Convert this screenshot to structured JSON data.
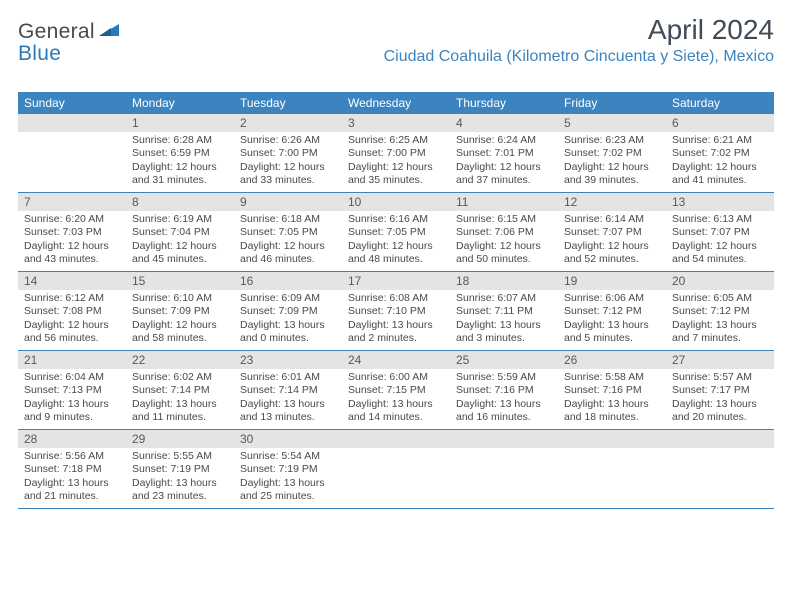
{
  "logo": {
    "textDark": "General",
    "textBlue": "Blue"
  },
  "title": "April 2024",
  "location": "Ciudad Coahuila (Kilometro Cincuenta y Siete), Mexico",
  "colors": {
    "headerBg": "#3b84bf",
    "headerText": "#ffffff",
    "dayNumBg": "#e4e4e4",
    "dayNumText": "#5a5a5a",
    "bodyText": "#4a4a4a",
    "rule": "#3b84bf",
    "logoDark": "#4a4a4a",
    "logoBlue": "#2a7ab9",
    "titleColor": "#414b56"
  },
  "typography": {
    "titleSize": 28,
    "locationSize": 16,
    "weekdaySize": 12,
    "dayNumSize": 12,
    "bodySize": 10.5
  },
  "weekdays": [
    "Sunday",
    "Monday",
    "Tuesday",
    "Wednesday",
    "Thursday",
    "Friday",
    "Saturday"
  ],
  "weeks": [
    [
      {
        "num": "",
        "sunrise": "",
        "sunset": "",
        "day1": "",
        "day2": ""
      },
      {
        "num": "1",
        "sunrise": "Sunrise: 6:28 AM",
        "sunset": "Sunset: 6:59 PM",
        "day1": "Daylight: 12 hours",
        "day2": "and 31 minutes."
      },
      {
        "num": "2",
        "sunrise": "Sunrise: 6:26 AM",
        "sunset": "Sunset: 7:00 PM",
        "day1": "Daylight: 12 hours",
        "day2": "and 33 minutes."
      },
      {
        "num": "3",
        "sunrise": "Sunrise: 6:25 AM",
        "sunset": "Sunset: 7:00 PM",
        "day1": "Daylight: 12 hours",
        "day2": "and 35 minutes."
      },
      {
        "num": "4",
        "sunrise": "Sunrise: 6:24 AM",
        "sunset": "Sunset: 7:01 PM",
        "day1": "Daylight: 12 hours",
        "day2": "and 37 minutes."
      },
      {
        "num": "5",
        "sunrise": "Sunrise: 6:23 AM",
        "sunset": "Sunset: 7:02 PM",
        "day1": "Daylight: 12 hours",
        "day2": "and 39 minutes."
      },
      {
        "num": "6",
        "sunrise": "Sunrise: 6:21 AM",
        "sunset": "Sunset: 7:02 PM",
        "day1": "Daylight: 12 hours",
        "day2": "and 41 minutes."
      }
    ],
    [
      {
        "num": "7",
        "sunrise": "Sunrise: 6:20 AM",
        "sunset": "Sunset: 7:03 PM",
        "day1": "Daylight: 12 hours",
        "day2": "and 43 minutes."
      },
      {
        "num": "8",
        "sunrise": "Sunrise: 6:19 AM",
        "sunset": "Sunset: 7:04 PM",
        "day1": "Daylight: 12 hours",
        "day2": "and 45 minutes."
      },
      {
        "num": "9",
        "sunrise": "Sunrise: 6:18 AM",
        "sunset": "Sunset: 7:05 PM",
        "day1": "Daylight: 12 hours",
        "day2": "and 46 minutes."
      },
      {
        "num": "10",
        "sunrise": "Sunrise: 6:16 AM",
        "sunset": "Sunset: 7:05 PM",
        "day1": "Daylight: 12 hours",
        "day2": "and 48 minutes."
      },
      {
        "num": "11",
        "sunrise": "Sunrise: 6:15 AM",
        "sunset": "Sunset: 7:06 PM",
        "day1": "Daylight: 12 hours",
        "day2": "and 50 minutes."
      },
      {
        "num": "12",
        "sunrise": "Sunrise: 6:14 AM",
        "sunset": "Sunset: 7:07 PM",
        "day1": "Daylight: 12 hours",
        "day2": "and 52 minutes."
      },
      {
        "num": "13",
        "sunrise": "Sunrise: 6:13 AM",
        "sunset": "Sunset: 7:07 PM",
        "day1": "Daylight: 12 hours",
        "day2": "and 54 minutes."
      }
    ],
    [
      {
        "num": "14",
        "sunrise": "Sunrise: 6:12 AM",
        "sunset": "Sunset: 7:08 PM",
        "day1": "Daylight: 12 hours",
        "day2": "and 56 minutes."
      },
      {
        "num": "15",
        "sunrise": "Sunrise: 6:10 AM",
        "sunset": "Sunset: 7:09 PM",
        "day1": "Daylight: 12 hours",
        "day2": "and 58 minutes."
      },
      {
        "num": "16",
        "sunrise": "Sunrise: 6:09 AM",
        "sunset": "Sunset: 7:09 PM",
        "day1": "Daylight: 13 hours",
        "day2": "and 0 minutes."
      },
      {
        "num": "17",
        "sunrise": "Sunrise: 6:08 AM",
        "sunset": "Sunset: 7:10 PM",
        "day1": "Daylight: 13 hours",
        "day2": "and 2 minutes."
      },
      {
        "num": "18",
        "sunrise": "Sunrise: 6:07 AM",
        "sunset": "Sunset: 7:11 PM",
        "day1": "Daylight: 13 hours",
        "day2": "and 3 minutes."
      },
      {
        "num": "19",
        "sunrise": "Sunrise: 6:06 AM",
        "sunset": "Sunset: 7:12 PM",
        "day1": "Daylight: 13 hours",
        "day2": "and 5 minutes."
      },
      {
        "num": "20",
        "sunrise": "Sunrise: 6:05 AM",
        "sunset": "Sunset: 7:12 PM",
        "day1": "Daylight: 13 hours",
        "day2": "and 7 minutes."
      }
    ],
    [
      {
        "num": "21",
        "sunrise": "Sunrise: 6:04 AM",
        "sunset": "Sunset: 7:13 PM",
        "day1": "Daylight: 13 hours",
        "day2": "and 9 minutes."
      },
      {
        "num": "22",
        "sunrise": "Sunrise: 6:02 AM",
        "sunset": "Sunset: 7:14 PM",
        "day1": "Daylight: 13 hours",
        "day2": "and 11 minutes."
      },
      {
        "num": "23",
        "sunrise": "Sunrise: 6:01 AM",
        "sunset": "Sunset: 7:14 PM",
        "day1": "Daylight: 13 hours",
        "day2": "and 13 minutes."
      },
      {
        "num": "24",
        "sunrise": "Sunrise: 6:00 AM",
        "sunset": "Sunset: 7:15 PM",
        "day1": "Daylight: 13 hours",
        "day2": "and 14 minutes."
      },
      {
        "num": "25",
        "sunrise": "Sunrise: 5:59 AM",
        "sunset": "Sunset: 7:16 PM",
        "day1": "Daylight: 13 hours",
        "day2": "and 16 minutes."
      },
      {
        "num": "26",
        "sunrise": "Sunrise: 5:58 AM",
        "sunset": "Sunset: 7:16 PM",
        "day1": "Daylight: 13 hours",
        "day2": "and 18 minutes."
      },
      {
        "num": "27",
        "sunrise": "Sunrise: 5:57 AM",
        "sunset": "Sunset: 7:17 PM",
        "day1": "Daylight: 13 hours",
        "day2": "and 20 minutes."
      }
    ],
    [
      {
        "num": "28",
        "sunrise": "Sunrise: 5:56 AM",
        "sunset": "Sunset: 7:18 PM",
        "day1": "Daylight: 13 hours",
        "day2": "and 21 minutes."
      },
      {
        "num": "29",
        "sunrise": "Sunrise: 5:55 AM",
        "sunset": "Sunset: 7:19 PM",
        "day1": "Daylight: 13 hours",
        "day2": "and 23 minutes."
      },
      {
        "num": "30",
        "sunrise": "Sunrise: 5:54 AM",
        "sunset": "Sunset: 7:19 PM",
        "day1": "Daylight: 13 hours",
        "day2": "and 25 minutes."
      },
      {
        "num": "",
        "sunrise": "",
        "sunset": "",
        "day1": "",
        "day2": ""
      },
      {
        "num": "",
        "sunrise": "",
        "sunset": "",
        "day1": "",
        "day2": ""
      },
      {
        "num": "",
        "sunrise": "",
        "sunset": "",
        "day1": "",
        "day2": ""
      },
      {
        "num": "",
        "sunrise": "",
        "sunset": "",
        "day1": "",
        "day2": ""
      }
    ]
  ]
}
